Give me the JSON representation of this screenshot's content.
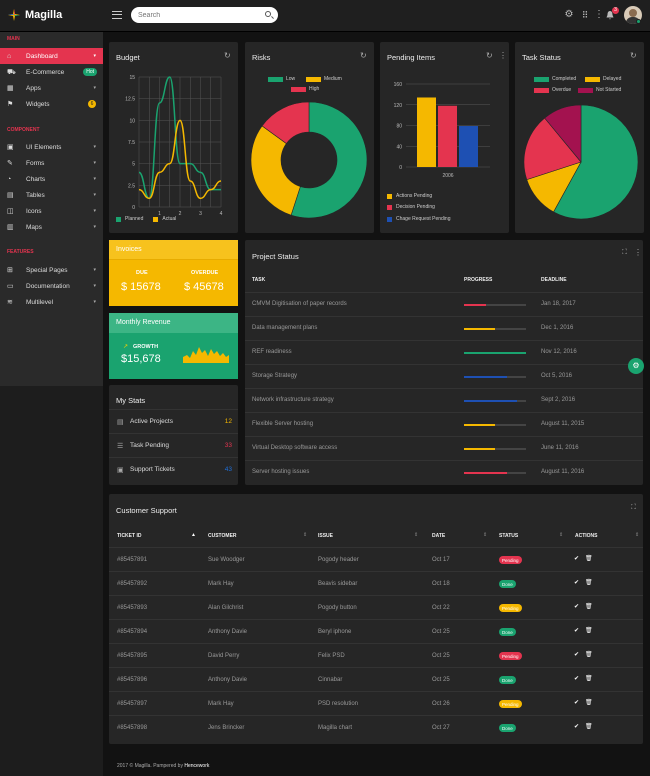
{
  "app": {
    "name": "Magilla"
  },
  "header": {
    "search_placeholder": "Search",
    "notification_count": "3"
  },
  "sidebar": {
    "sections": [
      {
        "title": "MAIN",
        "items": [
          {
            "label": "Dashboard",
            "icon": "home-icon",
            "active": true
          },
          {
            "label": "E-Commerce",
            "icon": "cart-icon",
            "badge": "Hot"
          },
          {
            "label": "Apps",
            "icon": "grid-icon"
          },
          {
            "label": "Widgets",
            "icon": "flag-icon",
            "badge": "6"
          }
        ]
      },
      {
        "title": "COMPONENT",
        "items": [
          {
            "label": "UI Elements",
            "icon": "cube-icon"
          },
          {
            "label": "Forms",
            "icon": "pencil-icon"
          },
          {
            "label": "Charts",
            "icon": "chart-icon"
          },
          {
            "label": "Tables",
            "icon": "table-icon"
          },
          {
            "label": "Icons",
            "icon": "icons-icon"
          },
          {
            "label": "Maps",
            "icon": "map-icon"
          }
        ]
      },
      {
        "title": "FEATURES",
        "items": [
          {
            "label": "Special Pages",
            "icon": "plus-square-icon"
          },
          {
            "label": "Documentation",
            "icon": "doc-icon"
          },
          {
            "label": "Multilevel",
            "icon": "layers-icon"
          }
        ]
      }
    ]
  },
  "budget": {
    "title": "Budget",
    "legend": [
      "Planned",
      "Actual"
    ],
    "chart_data": {
      "type": "line",
      "x": [
        0,
        0.5,
        1,
        1.5,
        2,
        2.5,
        3,
        3.5,
        4
      ],
      "series": [
        {
          "name": "Planned",
          "color": "#1aa36f",
          "values": [
            4,
            1,
            12,
            15,
            5,
            5,
            4,
            2,
            2
          ]
        },
        {
          "name": "Actual",
          "color": "#f5b800",
          "values": [
            2,
            1,
            4,
            5,
            10,
            3,
            1,
            2,
            3
          ]
        }
      ],
      "xlim": [
        0,
        4
      ],
      "ylim": [
        0,
        15
      ],
      "xticks": [
        "1",
        "2",
        "3",
        "4"
      ],
      "yticks": [
        "15",
        "12.5",
        "10",
        "7.5",
        "5",
        "2.5",
        "0"
      ],
      "grid": true
    }
  },
  "risks": {
    "title": "Risks",
    "chart_data": {
      "type": "pie",
      "labels": [
        "Low",
        "Medium",
        "High"
      ],
      "colors": [
        "#1aa36f",
        "#f5b800",
        "#e4344f"
      ],
      "values": [
        55,
        30,
        15
      ]
    }
  },
  "pending": {
    "title": "Pending Items",
    "chart_data": {
      "type": "bar",
      "categories": [
        "2006"
      ],
      "series": [
        {
          "name": "Actions Pending",
          "color": "#f5b800",
          "values": [
            134
          ]
        },
        {
          "name": "Decision Pending",
          "color": "#e4344f",
          "values": [
            118
          ]
        },
        {
          "name": "Chage Request Pending",
          "color": "#1e50b3",
          "values": [
            79
          ]
        }
      ],
      "yticks": [
        "160",
        "120",
        "80",
        "40",
        "0"
      ],
      "ylim": [
        0,
        160
      ]
    }
  },
  "task_status": {
    "title": "Task Status",
    "chart_data": {
      "type": "pie",
      "labels": [
        "Completed",
        "Delayed",
        "Overdue",
        "Not Started"
      ],
      "colors": [
        "#1aa36f",
        "#f5b800",
        "#e4344f",
        "#a3124f"
      ],
      "values": [
        58,
        12,
        19,
        11
      ]
    }
  },
  "invoices": {
    "title": "Invoices",
    "due_label": "DUE",
    "due_value": "$ 15678",
    "overdue_label": "OVERDUE",
    "overdue_value": "$ 45678"
  },
  "revenue": {
    "title": "Monthly Revenue",
    "growth_label": "GROWTH",
    "value": "$15,678"
  },
  "stats": {
    "title": "My Stats",
    "rows": [
      {
        "label": "Active Projects",
        "value": "12",
        "color": "#f5b800"
      },
      {
        "label": "Task Pending",
        "value": "33",
        "color": "#e4344f"
      },
      {
        "label": "Support Tickets",
        "value": "43",
        "color": "#1e6fd9"
      }
    ]
  },
  "project_status": {
    "title": "Project Status",
    "columns": [
      "TASK",
      "PROGRESS",
      "DEADLINE"
    ],
    "rows": [
      {
        "task": "CMVM Digitisation of paper records",
        "progress": 0.35,
        "color": "#e4344f",
        "deadline": "Jan 18, 2017"
      },
      {
        "task": "Data management plans",
        "progress": 0.5,
        "color": "#f5b800",
        "deadline": "Dec 1, 2016"
      },
      {
        "task": "REF readiness",
        "progress": 1.0,
        "color": "#1aa36f",
        "deadline": "Nov 12, 2016"
      },
      {
        "task": "Storage Strategy",
        "progress": 0.7,
        "color": "#1e50b3",
        "deadline": "Oct 5, 2016"
      },
      {
        "task": "Network infrastructure strategy",
        "progress": 0.85,
        "color": "#1e50b3",
        "deadline": "Sept 2, 2016"
      },
      {
        "task": "Flexible Server hosting",
        "progress": 0.5,
        "color": "#f5b800",
        "deadline": "August 11, 2015"
      },
      {
        "task": "Virtual Desktop software access",
        "progress": 0.5,
        "color": "#f5b800",
        "deadline": "June 11, 2016"
      },
      {
        "task": "Server hosting issues",
        "progress": 0.7,
        "color": "#e4344f",
        "deadline": "August 11, 2016"
      }
    ]
  },
  "support": {
    "title": "Customer Support",
    "columns": [
      "TICKET ID",
      "CUSTOMER",
      "ISSUE",
      "DATE",
      "STATUS",
      "ACTIONS"
    ],
    "rows": [
      {
        "id": "#85457891",
        "customer": "Sue Woodger",
        "issue": "Pogody header",
        "date": "Oct 17",
        "status": "Pending",
        "status_color": "#e4344f"
      },
      {
        "id": "#85457892",
        "customer": "Mark Hay",
        "issue": "Beavis sidebar",
        "date": "Oct 18",
        "status": "Done",
        "status_color": "#1aa36f"
      },
      {
        "id": "#85457893",
        "customer": "Alan Gilchrist",
        "issue": "Pogody button",
        "date": "Oct 22",
        "status": "Pending",
        "status_color": "#f5b800"
      },
      {
        "id": "#85457894",
        "customer": "Anthony Davie",
        "issue": "Beryl iphone",
        "date": "Oct 25",
        "status": "Done",
        "status_color": "#1aa36f"
      },
      {
        "id": "#85457895",
        "customer": "David Perry",
        "issue": "Felix PSD",
        "date": "Oct 25",
        "status": "Pending",
        "status_color": "#e4344f"
      },
      {
        "id": "#85457896",
        "customer": "Anthony Davie",
        "issue": "Cinnabar",
        "date": "Oct 25",
        "status": "Done",
        "status_color": "#1aa36f"
      },
      {
        "id": "#85457897",
        "customer": "Mark Hay",
        "issue": "PSD resolution",
        "date": "Oct 26",
        "status": "Pending",
        "status_color": "#f5b800"
      },
      {
        "id": "#85457898",
        "customer": "Jens Brincker",
        "issue": "Magilla chart",
        "date": "Oct 27",
        "status": "Done",
        "status_color": "#1aa36f"
      }
    ]
  },
  "footer": {
    "text": "2017 © Magilla. Pampered by ",
    "brand": "Hencework"
  }
}
